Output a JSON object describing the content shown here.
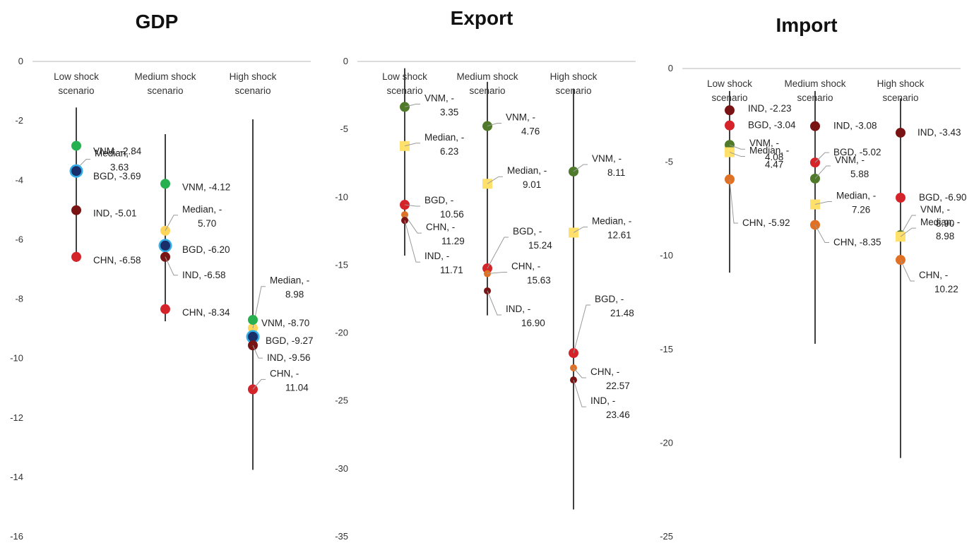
{
  "chart_data": [
    {
      "type": "scatter",
      "title": "GDP",
      "ylim": [
        -16,
        0
      ],
      "yticks": [
        0,
        -2,
        -4,
        -6,
        -8,
        -10,
        -12,
        -14,
        -16
      ],
      "scenarios": [
        {
          "name_lines": [
            "Low shock",
            "scenario"
          ],
          "range": [
            -1.55,
            -6.75
          ],
          "points": [
            {
              "series": "VNM",
              "value": -2.84,
              "label_lines": [
                "VNM, -2.84"
              ]
            },
            {
              "series": "Median",
              "value": -3.63,
              "label_lines": [
                "Median, -",
                "3.63"
              ]
            },
            {
              "series": "BGD",
              "value": -3.69,
              "label_lines": [
                "BGD, -3.69"
              ]
            },
            {
              "series": "IND",
              "value": -5.01,
              "label_lines": [
                "IND, -5.01"
              ]
            },
            {
              "series": "CHN",
              "value": -6.58,
              "label_lines": [
                "CHN, -6.58"
              ]
            }
          ]
        },
        {
          "name_lines": [
            "Medium shock",
            "scenario"
          ],
          "range": [
            -2.45,
            -8.75
          ],
          "points": [
            {
              "series": "VNM",
              "value": -4.12,
              "label_lines": [
                "VNM, -4.12"
              ]
            },
            {
              "series": "Median",
              "value": -5.7,
              "label_lines": [
                "Median, -",
                "5.70"
              ]
            },
            {
              "series": "BGD",
              "value": -6.2,
              "label_lines": [
                "BGD, -6.20"
              ]
            },
            {
              "series": "IND",
              "value": -6.58,
              "label_lines": [
                "IND, -6.58"
              ]
            },
            {
              "series": "CHN",
              "value": -8.34,
              "label_lines": [
                "CHN, -8.34"
              ]
            }
          ]
        },
        {
          "name_lines": [
            "High shock",
            "scenario"
          ],
          "range": [
            -1.95,
            -13.75
          ],
          "points": [
            {
              "series": "Median",
              "value": -8.98,
              "label_lines": [
                "Median, -",
                "8.98"
              ]
            },
            {
              "series": "VNM",
              "value": -8.7,
              "label_lines": [
                "VNM, -8.70"
              ]
            },
            {
              "series": "BGD",
              "value": -9.27,
              "label_lines": [
                "BGD, -9.27"
              ]
            },
            {
              "series": "IND",
              "value": -9.56,
              "label_lines": [
                "IND, -9.56"
              ]
            },
            {
              "series": "CHN",
              "value": -11.04,
              "label_lines": [
                "CHN, -",
                "11.04"
              ]
            }
          ]
        }
      ]
    },
    {
      "type": "scatter",
      "title": "Export",
      "ylim": [
        -35,
        0
      ],
      "yticks": [
        0,
        -5,
        -10,
        -15,
        -20,
        -25,
        -30,
        -35
      ],
      "scenarios": [
        {
          "name_lines": [
            "Low shock",
            "scenario"
          ],
          "range": [
            -0.5,
            -14.3
          ],
          "points": [
            {
              "series": "VNM",
              "value": -3.35,
              "label_lines": [
                "VNM, -",
                "3.35"
              ]
            },
            {
              "series": "Median",
              "value": -6.23,
              "label_lines": [
                "Median, -",
                "6.23"
              ]
            },
            {
              "series": "BGD",
              "value": -10.56,
              "label_lines": [
                "BGD, -",
                "10.56"
              ]
            },
            {
              "series": "CHN",
              "value": -11.29,
              "label_lines": [
                "CHN, -",
                "11.29"
              ]
            },
            {
              "series": "IND",
              "value": -11.71,
              "label_lines": [
                "IND, -",
                "11.71"
              ]
            }
          ]
        },
        {
          "name_lines": [
            "Medium shock",
            "scenario"
          ],
          "range": [
            -1.5,
            -18.7
          ],
          "points": [
            {
              "series": "VNM",
              "value": -4.76,
              "label_lines": [
                "VNM, -",
                "4.76"
              ]
            },
            {
              "series": "Median",
              "value": -9.01,
              "label_lines": [
                "Median, -",
                "9.01"
              ]
            },
            {
              "series": "BGD",
              "value": -15.24,
              "label_lines": [
                "BGD, -",
                "15.24"
              ]
            },
            {
              "series": "CHN",
              "value": -15.63,
              "label_lines": [
                "CHN, -",
                "15.63"
              ]
            },
            {
              "series": "IND",
              "value": -16.9,
              "label_lines": [
                "IND, -",
                "16.90"
              ]
            }
          ]
        },
        {
          "name_lines": [
            "High shock",
            "scenario"
          ],
          "range": [
            -2.0,
            -33.0
          ],
          "points": [
            {
              "series": "VNM",
              "value": -8.11,
              "label_lines": [
                "VNM, -",
                "8.11"
              ]
            },
            {
              "series": "Median",
              "value": -12.61,
              "label_lines": [
                "Median, -",
                "12.61"
              ]
            },
            {
              "series": "BGD",
              "value": -21.48,
              "label_lines": [
                "BGD, -",
                "21.48"
              ]
            },
            {
              "series": "CHN",
              "value": -22.57,
              "label_lines": [
                "CHN, -",
                "22.57"
              ]
            },
            {
              "series": "IND",
              "value": -23.46,
              "label_lines": [
                "IND, -",
                "23.46"
              ]
            }
          ]
        }
      ]
    },
    {
      "type": "scatter",
      "title": "Import",
      "ylim": [
        -25,
        0
      ],
      "yticks": [
        0,
        -5,
        -10,
        -15,
        -20,
        -25
      ],
      "scenarios": [
        {
          "name_lines": [
            "Low shock",
            "scenario"
          ],
          "range": [
            -1.2,
            -10.9
          ],
          "points": [
            {
              "series": "IND",
              "value": -2.23,
              "label_lines": [
                "IND, -2.23"
              ]
            },
            {
              "series": "BGD",
              "value": -3.04,
              "label_lines": [
                "BGD, -3.04"
              ]
            },
            {
              "series": "VNM",
              "value": -4.08,
              "label_lines": [
                "VNM, -",
                "4.08"
              ]
            },
            {
              "series": "Median",
              "value": -4.47,
              "label_lines": [
                "Median, -",
                "4.47"
              ]
            },
            {
              "series": "CHN",
              "value": -5.92,
              "label_lines": [
                "CHN, -5.92"
              ]
            }
          ]
        },
        {
          "name_lines": [
            "Medium shock",
            "scenario"
          ],
          "range": [
            -1.2,
            -14.7
          ],
          "points": [
            {
              "series": "IND",
              "value": -3.08,
              "label_lines": [
                "IND, -3.08"
              ]
            },
            {
              "series": "BGD",
              "value": -5.02,
              "label_lines": [
                "BGD, -5.02"
              ]
            },
            {
              "series": "VNM",
              "value": -5.88,
              "label_lines": [
                "VNM, -",
                "5.88"
              ]
            },
            {
              "series": "Median",
              "value": -7.26,
              "label_lines": [
                "Median, -",
                "7.26"
              ]
            },
            {
              "series": "CHN",
              "value": -8.35,
              "label_lines": [
                "CHN, -8.35"
              ]
            }
          ]
        },
        {
          "name_lines": [
            "High shock",
            "scenario"
          ],
          "range": [
            -1.6,
            -20.8
          ],
          "points": [
            {
              "series": "IND",
              "value": -3.43,
              "label_lines": [
                "IND, -3.43"
              ]
            },
            {
              "series": "BGD",
              "value": -6.9,
              "label_lines": [
                "BGD, -6.90"
              ]
            },
            {
              "series": "VNM",
              "value": -8.9,
              "label_lines": [
                "VNM, -",
                "8.90"
              ]
            },
            {
              "series": "Median",
              "value": -8.98,
              "label_lines": [
                "Median, -",
                "8.98"
              ]
            },
            {
              "series": "CHN",
              "value": -10.22,
              "label_lines": [
                "CHN, -",
                "10.22"
              ]
            }
          ]
        }
      ]
    }
  ]
}
